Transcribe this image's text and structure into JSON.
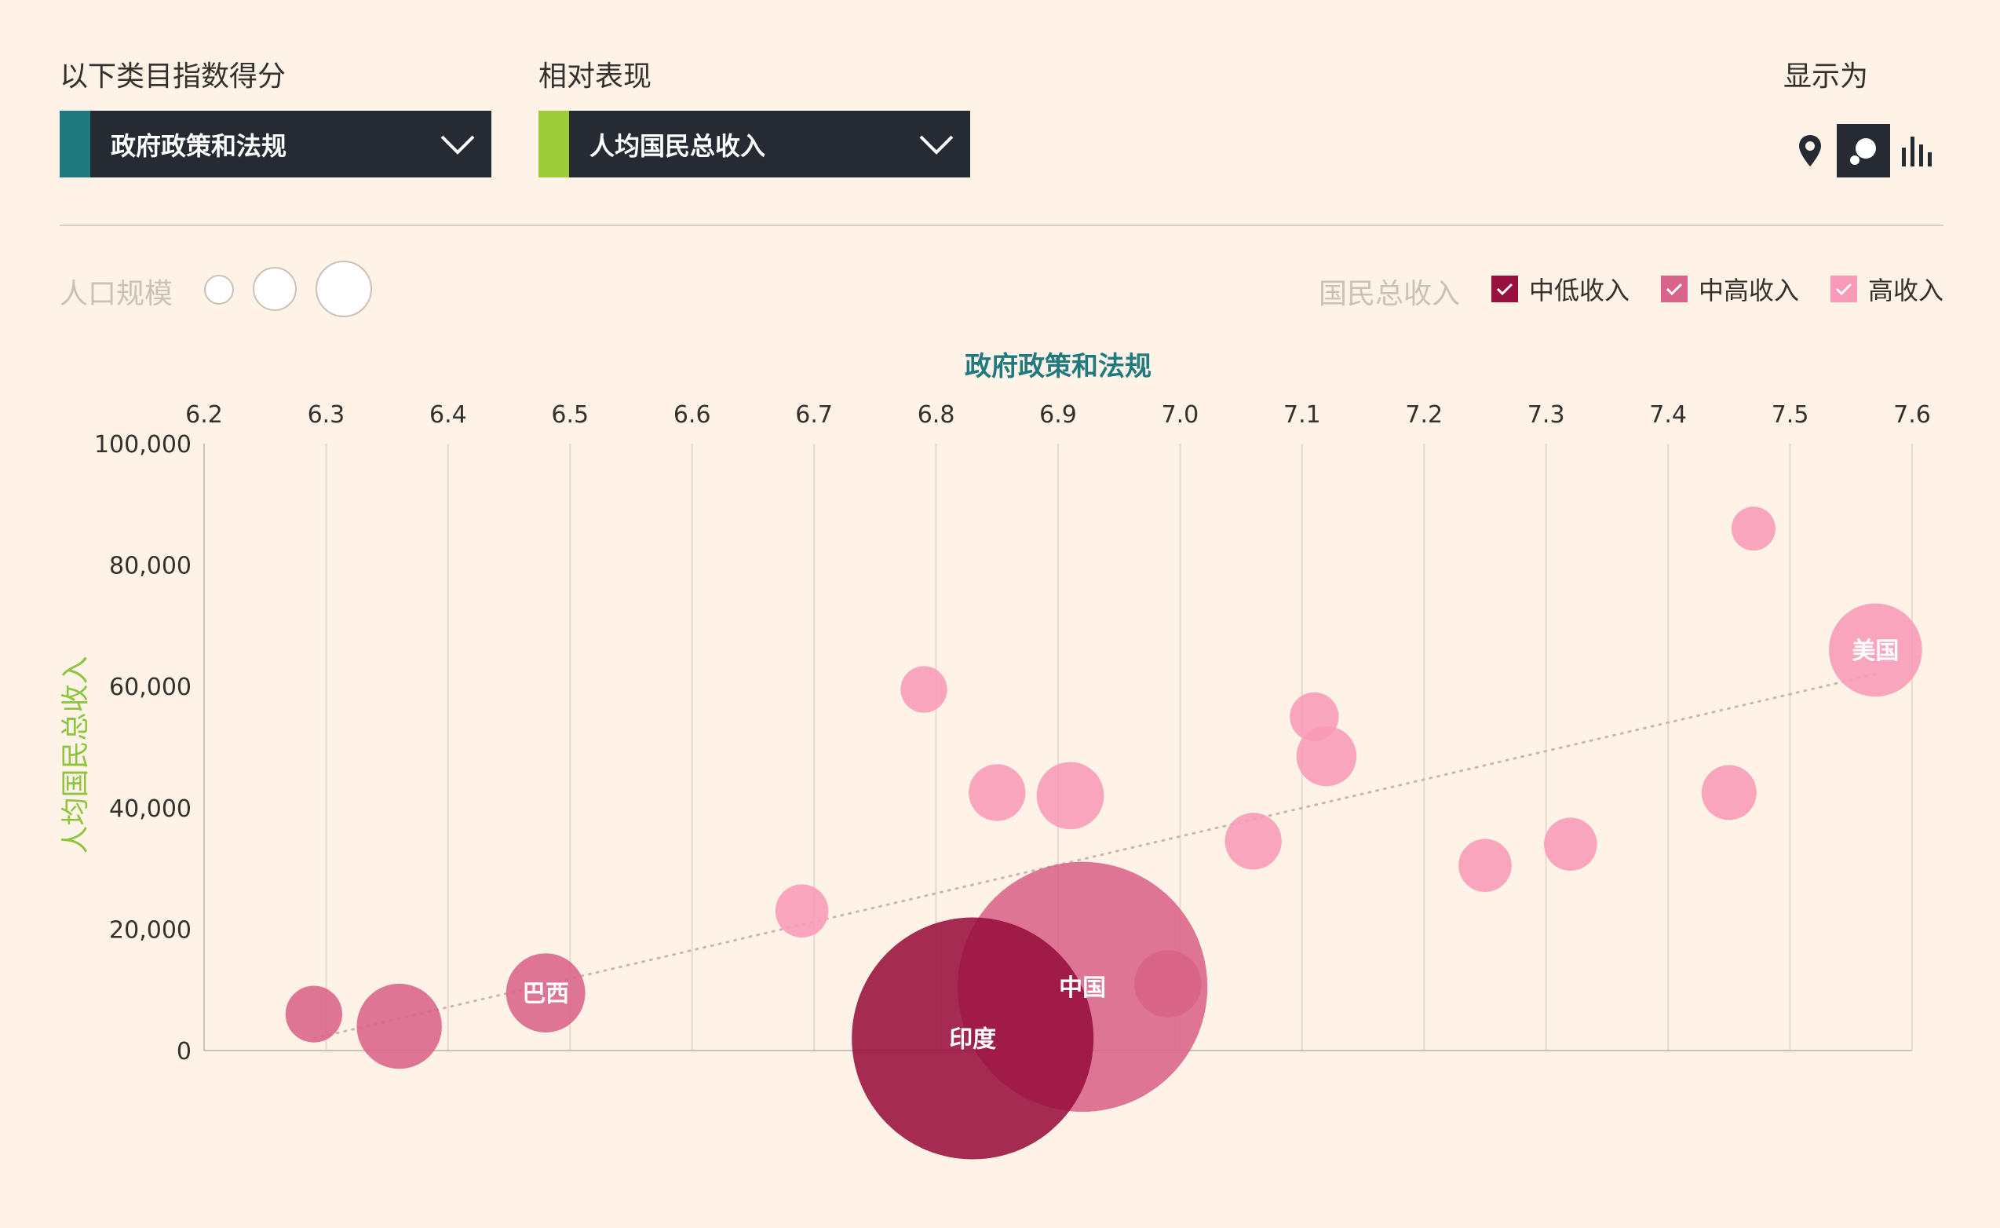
{
  "controls": {
    "category_label": "以下类目指数得分",
    "category_value": "政府政策和法规",
    "category_color": "#1f7a80",
    "compare_label": "相对表现",
    "compare_value": "人均国民总收入",
    "compare_color": "#9ecb3a",
    "display_label": "显示为",
    "views": [
      "map-icon",
      "bubble-icon",
      "bar-chart-icon"
    ]
  },
  "population": {
    "label": "人口规模"
  },
  "legend": {
    "title": "国民总收入",
    "items": [
      {
        "label": "中低收入",
        "color": "#990f3d"
      },
      {
        "label": "中高收入",
        "color": "#d9638a"
      },
      {
        "label": "高收入",
        "color": "#f99ab8"
      }
    ]
  },
  "chart_data": {
    "type": "scatter",
    "xlabel": "政府政策和法规",
    "ylabel": "人均国民总收入",
    "xlim": [
      6.2,
      7.6
    ],
    "ylim": [
      0,
      100000
    ],
    "x_ticks": [
      "6.2",
      "6.3",
      "6.4",
      "6.5",
      "6.6",
      "6.7",
      "6.8",
      "6.9",
      "7.0",
      "7.1",
      "7.2",
      "7.3",
      "7.4",
      "7.5",
      "7.6"
    ],
    "y_ticks": [
      "0",
      "20,000",
      "40,000",
      "60,000",
      "80,000",
      "100,000"
    ],
    "trendline": {
      "x": [
        6.29,
        7.57
      ],
      "y": [
        2000,
        62000
      ]
    },
    "points": [
      {
        "label": "",
        "x": 6.29,
        "y": 6000,
        "pop": 0.1,
        "group": "中高收入"
      },
      {
        "label": "",
        "x": 6.36,
        "y": 4000,
        "pop": 0.33,
        "group": "中高收入"
      },
      {
        "label": "巴西",
        "x": 6.48,
        "y": 9500,
        "pop": 0.27,
        "group": "中高收入"
      },
      {
        "label": "",
        "x": 6.69,
        "y": 23000,
        "pop": 0.08,
        "group": "高收入"
      },
      {
        "label": "",
        "x": 6.79,
        "y": 59500,
        "pop": 0.05,
        "group": "高收入"
      },
      {
        "label": "",
        "x": 6.85,
        "y": 42500,
        "pop": 0.1,
        "group": "高收入"
      },
      {
        "label": "",
        "x": 6.91,
        "y": 42000,
        "pop": 0.17,
        "group": "高收入"
      },
      {
        "label": "",
        "x": 6.99,
        "y": 11000,
        "pop": 0.17,
        "group": "中高收入"
      },
      {
        "label": "中国",
        "x": 6.92,
        "y": 10500,
        "pop": 4.3,
        "group": "中高收入"
      },
      {
        "label": "印度",
        "x": 6.83,
        "y": 2000,
        "pop": 4.0,
        "group": "中低收入"
      },
      {
        "label": "",
        "x": 7.06,
        "y": 34500,
        "pop": 0.1,
        "group": "高收入"
      },
      {
        "label": "",
        "x": 7.11,
        "y": 55000,
        "pop": 0.06,
        "group": "高收入"
      },
      {
        "label": "",
        "x": 7.12,
        "y": 48500,
        "pop": 0.12,
        "group": "高收入"
      },
      {
        "label": "",
        "x": 7.25,
        "y": 30500,
        "pop": 0.08,
        "group": "高收入"
      },
      {
        "label": "",
        "x": 7.32,
        "y": 34000,
        "pop": 0.08,
        "group": "高收入"
      },
      {
        "label": "",
        "x": 7.45,
        "y": 42500,
        "pop": 0.09,
        "group": "高收入"
      },
      {
        "label": "",
        "x": 7.47,
        "y": 86000,
        "pop": 0.04,
        "group": "高收入"
      },
      {
        "label": "美国",
        "x": 7.57,
        "y": 66000,
        "pop": 0.42,
        "group": "高收入"
      }
    ]
  }
}
